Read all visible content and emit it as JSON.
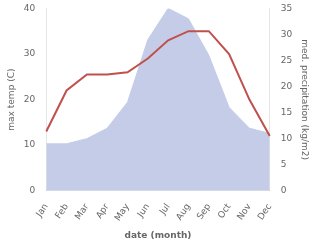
{
  "chart_data": {
    "type": "line",
    "categories": [
      "Jan",
      "Feb",
      "Mar",
      "Apr",
      "May",
      "Jun",
      "Jul",
      "Aug",
      "Sep",
      "Oct",
      "Nov",
      "Dec"
    ],
    "series": [
      {
        "type": "area",
        "color": "#c5cce8",
        "axis": "y2",
        "values": [
          9,
          9,
          10,
          12,
          17,
          29,
          35,
          33,
          26,
          16,
          12,
          11
        ]
      },
      {
        "type": "line",
        "color": "#c0504d",
        "values": [
          13,
          22,
          25.5,
          25.5,
          26,
          29,
          33,
          35,
          35,
          30,
          20,
          12
        ]
      }
    ],
    "xlabel": "date (month)",
    "ylabel": "max temp (C)",
    "y2label": "med. precipitation (kg/m2)",
    "ylim": [
      0,
      40
    ],
    "yticks": [
      0,
      10,
      20,
      30,
      40
    ],
    "y2lim": [
      0,
      35
    ],
    "y2ticks": [
      0,
      5,
      10,
      15,
      20,
      25,
      30,
      35
    ],
    "grid": false
  }
}
